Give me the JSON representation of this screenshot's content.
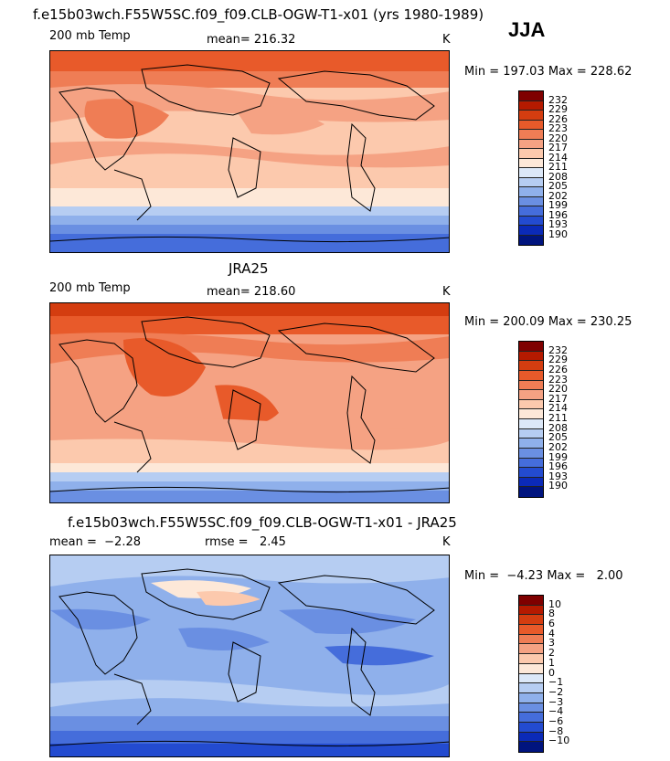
{
  "season": "JJA",
  "palettes": {
    "temp": [
      "#7f0000",
      "#b51a00",
      "#d43d10",
      "#e85a2a",
      "#ef7d55",
      "#f5a283",
      "#fcc9ad",
      "#fde8d8",
      "#dce8f8",
      "#b6cdf2",
      "#8fb0eb",
      "#6a8fe2",
      "#456ddb",
      "#234bd0",
      "#0b2ab8",
      "#00147e"
    ],
    "diff": [
      "#7f0000",
      "#b51a00",
      "#d43d10",
      "#e85a2a",
      "#ef7d55",
      "#f5a283",
      "#fcc9ad",
      "#fde8d8",
      "#dce8f8",
      "#b6cdf2",
      "#8fb0eb",
      "#6a8fe2",
      "#456ddb",
      "#234bd0",
      "#0b2ab8",
      "#00147e"
    ]
  },
  "panels": [
    {
      "title": "f.e15b03wch.F55W5SC.f09_f09.CLB-OGW-T1-x01 (yrs 1980-1989)",
      "left": "200 mb Temp",
      "mid": "mean= 216.32",
      "unit": "K",
      "minmax": "Min = 197.03 Max = 228.62",
      "palette": "temp",
      "colorbar_labels": [
        "232",
        "229",
        "226",
        "223",
        "220",
        "217",
        "214",
        "211",
        "208",
        "205",
        "202",
        "199",
        "196",
        "193",
        "190"
      ]
    },
    {
      "title": "JRA25",
      "left": "200 mb Temp",
      "mid": "mean= 218.60",
      "unit": "K",
      "minmax": "Min = 200.09 Max = 230.25",
      "palette": "temp",
      "colorbar_labels": [
        "232",
        "229",
        "226",
        "223",
        "220",
        "217",
        "214",
        "211",
        "208",
        "205",
        "202",
        "199",
        "196",
        "193",
        "190"
      ]
    },
    {
      "title": "f.e15b03wch.F55W5SC.f09_f09.CLB-OGW-T1-x01 - JRA25",
      "left": "mean =  −2.28",
      "mid": "rmse =   2.45",
      "unit": "K",
      "minmax": "Min =  −4.23 Max =   2.00",
      "palette": "diff",
      "colorbar_labels": [
        "10",
        "8",
        "6",
        "4",
        "3",
        "2",
        "1",
        "0",
        "−1",
        "−2",
        "−3",
        "−4",
        "−6",
        "−8",
        "−10"
      ]
    }
  ]
}
